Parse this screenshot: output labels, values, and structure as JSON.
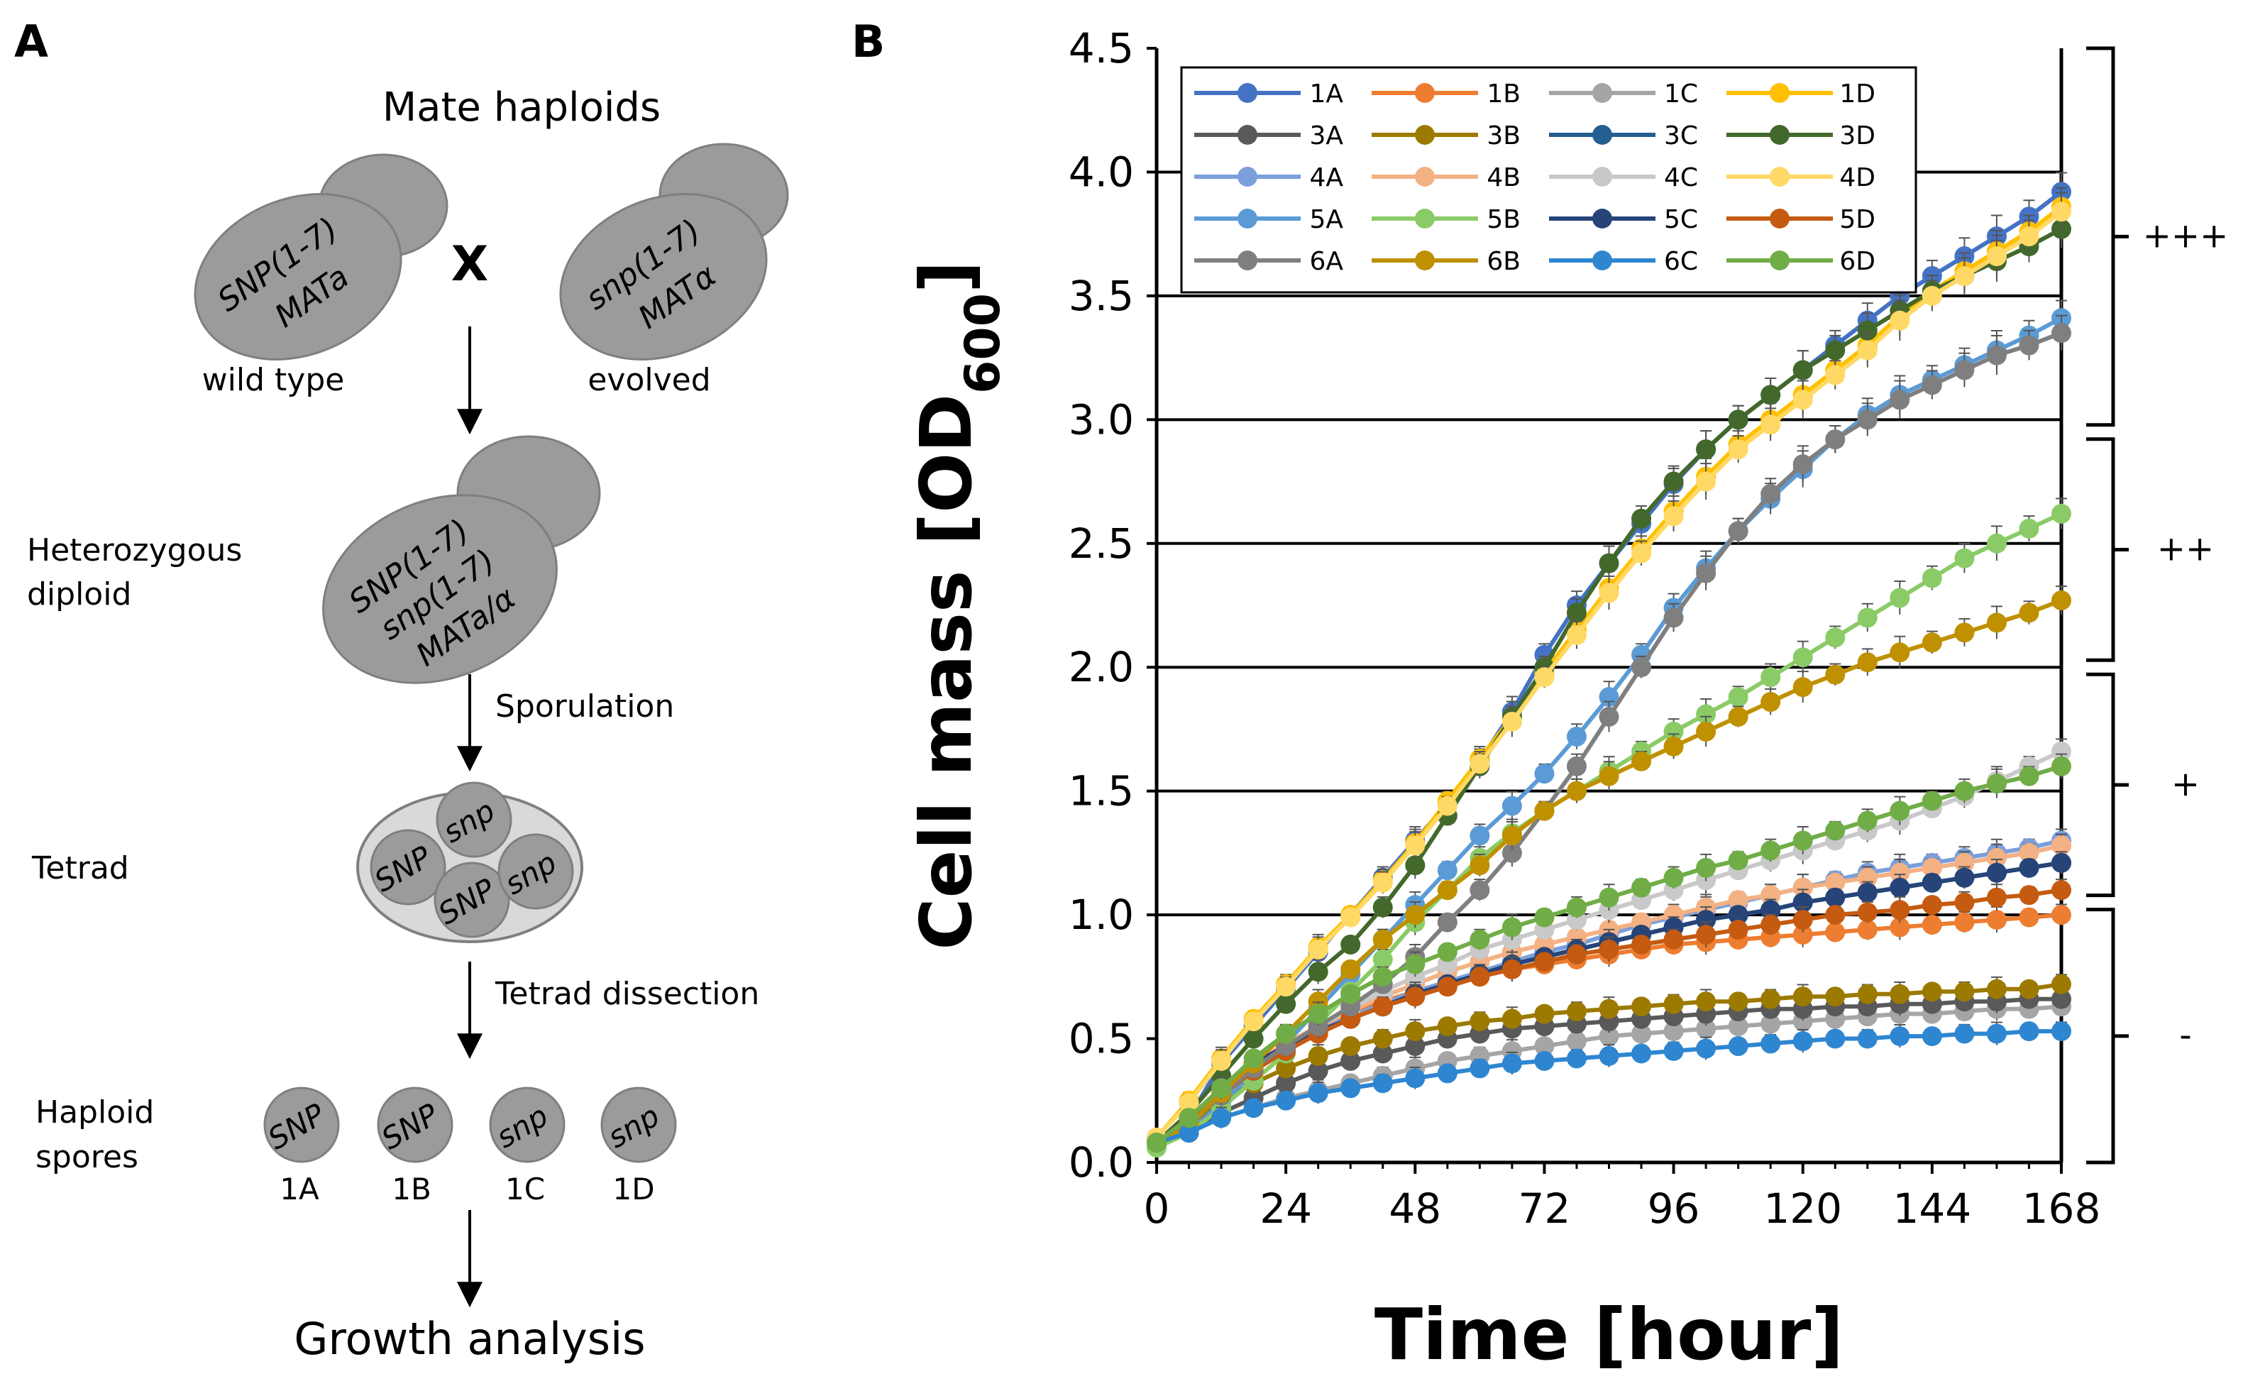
{
  "panel_a": {
    "letter": "A",
    "title": "Mate haploids",
    "cross": "X",
    "parent_wt": {
      "line1": "SNP(1-7)",
      "line2": "MATa",
      "caption": "wild type"
    },
    "parent_ev": {
      "line1": "snp(1-7)",
      "line2": "MATα",
      "caption": "evolved"
    },
    "diploid": {
      "label1": "Heterozygous",
      "label2": "diploid",
      "line1": "SNP(1-7)",
      "line2": "snp(1-7)",
      "line3": "MATa/α"
    },
    "step_sporulation": "Sporulation",
    "tetrad": {
      "label": "Tetrad",
      "spores": [
        "snp",
        "SNP",
        "SNP",
        "snp"
      ]
    },
    "step_dissection": "Tetrad dissection",
    "haploids": {
      "label1": "Haploid",
      "label2": "spores",
      "spores": [
        {
          "text": "SNP",
          "id": "1A"
        },
        {
          "text": "SNP",
          "id": "1B"
        },
        {
          "text": "snp",
          "id": "1C"
        },
        {
          "text": "snp",
          "id": "1D"
        }
      ]
    },
    "final": "Growth analysis"
  },
  "chart_data": {
    "panel_letter": "B",
    "type": "line",
    "xlabel": "Time [hour]",
    "ylabel": "Cell mass [OD",
    "ylabel_sub": "600",
    "ylabel_close": "]",
    "xlim": [
      0,
      168
    ],
    "ylim": [
      0,
      4.5
    ],
    "xticks": [
      0,
      24,
      48,
      72,
      96,
      120,
      144,
      168
    ],
    "xtick_labels": [
      "0",
      "24",
      "48",
      "72",
      "96",
      "120",
      "144",
      "168"
    ],
    "yticks": [
      0,
      0.5,
      1,
      1.5,
      2,
      2.5,
      3,
      3.5,
      4,
      4.5
    ],
    "ytick_labels": [
      "0.0",
      "0.5",
      "1.0",
      "1.5",
      "2.0",
      "2.5",
      "3.0",
      "3.5",
      "4.0",
      "4.5"
    ],
    "gridlines_y": [
      1,
      1.5,
      2,
      2.5,
      3,
      3.5,
      4
    ],
    "groups": [
      {
        "label": "+++",
        "range": [
          2.95,
          4.5
        ]
      },
      {
        "label": "++",
        "range": [
          2.0,
          2.95
        ]
      },
      {
        "label": "+",
        "range": [
          1.05,
          2.0
        ]
      },
      {
        "label": "-",
        "range": [
          0,
          1.05
        ]
      }
    ],
    "x": [
      0,
      6,
      12,
      18,
      24,
      30,
      36,
      42,
      48,
      54,
      60,
      66,
      72,
      78,
      84,
      90,
      96,
      102,
      108,
      114,
      120,
      126,
      132,
      138,
      144,
      150,
      156,
      162,
      168
    ],
    "series": [
      {
        "name": "1A",
        "color": "#4472C4",
        "values": [
          0.08,
          0.18,
          0.4,
          0.55,
          0.7,
          0.85,
          1.0,
          1.15,
          1.3,
          1.45,
          1.62,
          1.82,
          2.05,
          2.25,
          2.42,
          2.58,
          2.74,
          2.88,
          3.0,
          3.1,
          3.2,
          3.3,
          3.4,
          3.5,
          3.58,
          3.66,
          3.74,
          3.82,
          3.92
        ]
      },
      {
        "name": "1B",
        "color": "#ED7D31",
        "values": [
          0.1,
          0.14,
          0.3,
          0.4,
          0.47,
          0.54,
          0.6,
          0.65,
          0.69,
          0.73,
          0.76,
          0.78,
          0.8,
          0.82,
          0.84,
          0.86,
          0.88,
          0.89,
          0.9,
          0.91,
          0.92,
          0.93,
          0.94,
          0.95,
          0.96,
          0.97,
          0.98,
          0.99,
          1.0
        ]
      },
      {
        "name": "1C",
        "color": "#A5A5A5",
        "values": [
          0.08,
          0.12,
          0.18,
          0.22,
          0.26,
          0.29,
          0.32,
          0.35,
          0.38,
          0.41,
          0.43,
          0.45,
          0.47,
          0.49,
          0.51,
          0.52,
          0.53,
          0.54,
          0.55,
          0.56,
          0.57,
          0.58,
          0.59,
          0.6,
          0.6,
          0.61,
          0.62,
          0.62,
          0.63
        ]
      },
      {
        "name": "1D",
        "color": "#FFC000",
        "values": [
          0.1,
          0.25,
          0.42,
          0.58,
          0.72,
          0.87,
          1.0,
          1.14,
          1.29,
          1.46,
          1.63,
          1.8,
          1.98,
          2.15,
          2.32,
          2.48,
          2.63,
          2.77,
          2.9,
          3.0,
          3.1,
          3.2,
          3.3,
          3.42,
          3.52,
          3.6,
          3.68,
          3.76,
          3.86
        ]
      },
      {
        "name": "3A",
        "color": "#595959",
        "values": [
          0.08,
          0.12,
          0.2,
          0.26,
          0.32,
          0.37,
          0.41,
          0.44,
          0.47,
          0.5,
          0.52,
          0.54,
          0.55,
          0.56,
          0.57,
          0.58,
          0.59,
          0.6,
          0.61,
          0.62,
          0.62,
          0.63,
          0.63,
          0.64,
          0.64,
          0.65,
          0.65,
          0.66,
          0.66
        ]
      },
      {
        "name": "3B",
        "color": "#9C7A00",
        "values": [
          0.08,
          0.15,
          0.25,
          0.32,
          0.38,
          0.43,
          0.47,
          0.5,
          0.53,
          0.55,
          0.57,
          0.58,
          0.6,
          0.61,
          0.62,
          0.63,
          0.64,
          0.65,
          0.65,
          0.66,
          0.67,
          0.67,
          0.68,
          0.68,
          0.69,
          0.69,
          0.7,
          0.7,
          0.72
        ]
      },
      {
        "name": "3C",
        "color": "#255E91",
        "values": [
          0.08,
          0.18,
          0.3,
          0.4,
          0.47,
          0.53,
          0.58,
          0.63,
          0.68,
          0.72,
          0.76,
          0.8,
          0.83,
          0.86,
          0.89,
          0.92,
          0.95,
          0.98,
          1.0,
          1.02,
          1.05,
          1.07,
          1.09,
          1.11,
          1.13,
          1.15,
          1.17,
          1.19,
          1.21
        ]
      },
      {
        "name": "3D",
        "color": "#43682B",
        "values": [
          0.08,
          0.2,
          0.35,
          0.5,
          0.64,
          0.77,
          0.88,
          1.03,
          1.2,
          1.4,
          1.6,
          1.8,
          2.0,
          2.22,
          2.42,
          2.6,
          2.75,
          2.88,
          3.0,
          3.1,
          3.2,
          3.28,
          3.36,
          3.44,
          3.52,
          3.58,
          3.64,
          3.7,
          3.77
        ]
      },
      {
        "name": "4A",
        "color": "#7A9FDB",
        "values": [
          0.08,
          0.16,
          0.28,
          0.38,
          0.46,
          0.53,
          0.59,
          0.64,
          0.69,
          0.73,
          0.77,
          0.81,
          0.85,
          0.88,
          0.92,
          0.96,
          0.99,
          1.02,
          1.05,
          1.08,
          1.11,
          1.14,
          1.17,
          1.19,
          1.21,
          1.23,
          1.25,
          1.27,
          1.3
        ]
      },
      {
        "name": "4B",
        "color": "#F4B183",
        "values": [
          0.08,
          0.18,
          0.3,
          0.4,
          0.48,
          0.55,
          0.61,
          0.67,
          0.72,
          0.77,
          0.81,
          0.85,
          0.88,
          0.91,
          0.94,
          0.97,
          1.0,
          1.03,
          1.06,
          1.08,
          1.11,
          1.13,
          1.15,
          1.17,
          1.19,
          1.21,
          1.23,
          1.25,
          1.28
        ]
      },
      {
        "name": "4C",
        "color": "#C9C9C9",
        "values": [
          0.08,
          0.15,
          0.27,
          0.38,
          0.47,
          0.55,
          0.62,
          0.69,
          0.75,
          0.8,
          0.86,
          0.9,
          0.94,
          0.98,
          1.02,
          1.06,
          1.1,
          1.14,
          1.18,
          1.22,
          1.26,
          1.3,
          1.34,
          1.38,
          1.43,
          1.48,
          1.54,
          1.6,
          1.66
        ]
      },
      {
        "name": "4D",
        "color": "#FFD966",
        "values": [
          0.1,
          0.24,
          0.41,
          0.57,
          0.71,
          0.86,
          0.99,
          1.13,
          1.28,
          1.44,
          1.61,
          1.78,
          1.96,
          2.13,
          2.3,
          2.46,
          2.61,
          2.75,
          2.88,
          2.98,
          3.08,
          3.18,
          3.28,
          3.4,
          3.5,
          3.58,
          3.66,
          3.74,
          3.84
        ]
      },
      {
        "name": "5A",
        "color": "#5B9BD5",
        "values": [
          0.08,
          0.12,
          0.24,
          0.36,
          0.48,
          0.62,
          0.76,
          0.9,
          1.04,
          1.18,
          1.32,
          1.44,
          1.57,
          1.72,
          1.88,
          2.05,
          2.24,
          2.4,
          2.55,
          2.68,
          2.8,
          2.92,
          3.02,
          3.1,
          3.16,
          3.22,
          3.28,
          3.34,
          3.41
        ]
      },
      {
        "name": "5B",
        "color": "#8BCB67",
        "values": [
          0.06,
          0.12,
          0.22,
          0.33,
          0.44,
          0.56,
          0.69,
          0.82,
          0.97,
          1.1,
          1.23,
          1.33,
          1.42,
          1.5,
          1.58,
          1.66,
          1.74,
          1.81,
          1.88,
          1.96,
          2.04,
          2.12,
          2.2,
          2.28,
          2.36,
          2.44,
          2.5,
          2.56,
          2.62
        ]
      },
      {
        "name": "5C",
        "color": "#264478",
        "values": [
          0.08,
          0.18,
          0.3,
          0.4,
          0.47,
          0.53,
          0.58,
          0.63,
          0.68,
          0.72,
          0.76,
          0.8,
          0.83,
          0.86,
          0.89,
          0.92,
          0.95,
          0.98,
          1.0,
          1.02,
          1.05,
          1.07,
          1.09,
          1.11,
          1.13,
          1.15,
          1.17,
          1.19,
          1.21
        ]
      },
      {
        "name": "5D",
        "color": "#C55A11",
        "values": [
          0.08,
          0.16,
          0.27,
          0.37,
          0.45,
          0.52,
          0.58,
          0.63,
          0.67,
          0.71,
          0.75,
          0.78,
          0.81,
          0.84,
          0.86,
          0.88,
          0.9,
          0.92,
          0.94,
          0.96,
          0.98,
          1.0,
          1.01,
          1.02,
          1.04,
          1.05,
          1.07,
          1.08,
          1.1
        ]
      },
      {
        "name": "6A",
        "color": "#7F7F7F",
        "values": [
          0.08,
          0.15,
          0.27,
          0.38,
          0.47,
          0.55,
          0.63,
          0.72,
          0.83,
          0.97,
          1.1,
          1.25,
          1.42,
          1.6,
          1.8,
          2.0,
          2.2,
          2.38,
          2.55,
          2.7,
          2.82,
          2.92,
          3.0,
          3.08,
          3.14,
          3.2,
          3.26,
          3.3,
          3.35
        ]
      },
      {
        "name": "6B",
        "color": "#BF9000",
        "values": [
          0.08,
          0.15,
          0.28,
          0.4,
          0.52,
          0.65,
          0.78,
          0.9,
          1.0,
          1.1,
          1.2,
          1.32,
          1.42,
          1.5,
          1.56,
          1.62,
          1.68,
          1.74,
          1.8,
          1.86,
          1.92,
          1.97,
          2.02,
          2.06,
          2.1,
          2.14,
          2.18,
          2.22,
          2.27
        ]
      },
      {
        "name": "6C",
        "color": "#2E86D1",
        "values": [
          0.08,
          0.12,
          0.18,
          0.22,
          0.25,
          0.28,
          0.3,
          0.32,
          0.34,
          0.36,
          0.38,
          0.4,
          0.41,
          0.42,
          0.43,
          0.44,
          0.45,
          0.46,
          0.47,
          0.48,
          0.49,
          0.5,
          0.5,
          0.51,
          0.51,
          0.52,
          0.52,
          0.53,
          0.53
        ]
      },
      {
        "name": "6D",
        "color": "#70AD47",
        "values": [
          0.08,
          0.18,
          0.3,
          0.42,
          0.52,
          0.6,
          0.68,
          0.75,
          0.8,
          0.85,
          0.9,
          0.95,
          0.99,
          1.03,
          1.07,
          1.11,
          1.15,
          1.19,
          1.22,
          1.26,
          1.3,
          1.34,
          1.38,
          1.42,
          1.46,
          1.5,
          1.53,
          1.56,
          1.6
        ]
      }
    ]
  }
}
